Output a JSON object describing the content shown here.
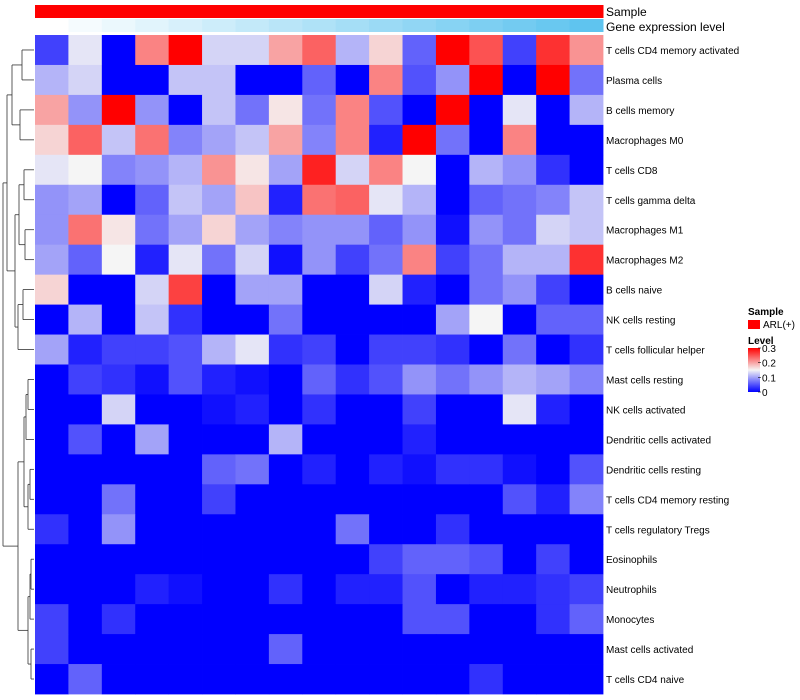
{
  "chart_data": {
    "type": "heatmap",
    "title": "",
    "annotations": {
      "sample_track_label": "Sample",
      "expression_track_label": "Gene expression level",
      "sample_color": "#ff0000",
      "expression_gradient": [
        "#ffffff",
        "#5fc4ef"
      ]
    },
    "row_labels": [
      "T cells CD4 memory activated",
      "Plasma cells",
      "B cells memory",
      "Macrophages M0",
      "T cells CD8",
      "T cells gamma delta",
      "Macrophages M1",
      "Macrophages M2",
      "B cells naive",
      "NK cells resting",
      "T cells follicular helper",
      "Mast cells resting",
      "NK cells activated",
      "Dendritic cells activated",
      "Dendritic cells resting",
      "T cells CD4 memory resting",
      "T cells regulatory  Tregs",
      "Eosinophils",
      "Neutrophils",
      "Monocytes",
      "Mast cells activated",
      "T cells CD4 naive"
    ],
    "columns": 17,
    "values": [
      [
        0.04,
        0.14,
        0.0,
        0.22,
        0.3,
        0.13,
        0.13,
        0.2,
        0.24,
        0.11,
        0.17,
        0.06,
        0.3,
        0.25,
        0.04,
        0.27,
        0.21
      ],
      [
        0.11,
        0.13,
        0.0,
        0.0,
        0.12,
        0.12,
        0.0,
        0.0,
        0.06,
        0.0,
        0.22,
        0.05,
        0.09,
        0.3,
        0.0,
        0.3,
        0.07
      ],
      [
        0.2,
        0.09,
        0.3,
        0.09,
        0.0,
        0.12,
        0.07,
        0.16,
        0.07,
        0.22,
        0.05,
        0.0,
        0.3,
        0.0,
        0.14,
        0.0,
        0.11
      ],
      [
        0.17,
        0.24,
        0.12,
        0.23,
        0.08,
        0.1,
        0.12,
        0.2,
        0.08,
        0.22,
        0.02,
        0.3,
        0.07,
        0.0,
        0.22,
        0.0,
        0.0
      ],
      [
        0.14,
        0.15,
        0.08,
        0.09,
        0.11,
        0.21,
        0.16,
        0.1,
        0.28,
        0.13,
        0.22,
        0.15,
        0.0,
        0.11,
        0.09,
        0.03,
        0.0
      ],
      [
        0.09,
        0.1,
        0.0,
        0.06,
        0.12,
        0.1,
        0.18,
        0.02,
        0.23,
        0.24,
        0.14,
        0.11,
        0.0,
        0.06,
        0.07,
        0.08,
        0.12
      ],
      [
        0.09,
        0.23,
        0.16,
        0.07,
        0.1,
        0.17,
        0.1,
        0.08,
        0.09,
        0.09,
        0.06,
        0.09,
        0.01,
        0.09,
        0.07,
        0.13,
        0.12
      ],
      [
        0.1,
        0.06,
        0.15,
        0.02,
        0.14,
        0.07,
        0.13,
        0.01,
        0.09,
        0.04,
        0.07,
        0.22,
        0.04,
        0.07,
        0.11,
        0.11,
        0.27
      ],
      [
        0.17,
        0.0,
        0.0,
        0.13,
        0.26,
        0.0,
        0.1,
        0.1,
        0.0,
        0.0,
        0.13,
        0.02,
        0.0,
        0.07,
        0.09,
        0.04,
        0.0
      ],
      [
        0.0,
        0.11,
        0.0,
        0.12,
        0.03,
        0.0,
        0.0,
        0.07,
        0.0,
        0.0,
        0.0,
        0.0,
        0.1,
        0.15,
        0.0,
        0.06,
        0.06
      ],
      [
        0.1,
        0.02,
        0.04,
        0.04,
        0.05,
        0.11,
        0.14,
        0.03,
        0.04,
        0.0,
        0.04,
        0.04,
        0.03,
        0.0,
        0.07,
        0.0,
        0.03
      ],
      [
        0.0,
        0.04,
        0.03,
        0.01,
        0.05,
        0.02,
        0.01,
        0.0,
        0.06,
        0.03,
        0.05,
        0.09,
        0.07,
        0.09,
        0.11,
        0.1,
        0.08
      ],
      [
        0.0,
        0.0,
        0.13,
        0.0,
        0.0,
        0.01,
        0.02,
        0.0,
        0.03,
        0.0,
        0.0,
        0.04,
        0.0,
        0.0,
        0.14,
        0.02,
        0.0
      ],
      [
        0.0,
        0.05,
        0.0,
        0.1,
        0.0,
        0.0,
        0.0,
        0.11,
        0.0,
        0.0,
        0.0,
        0.02,
        0.0,
        0.0,
        0.0,
        0.0,
        0.0
      ],
      [
        0.0,
        0.0,
        0.0,
        0.0,
        0.0,
        0.06,
        0.07,
        0.0,
        0.02,
        0.0,
        0.02,
        0.01,
        0.03,
        0.03,
        0.01,
        0.0,
        0.05
      ],
      [
        0.0,
        0.0,
        0.07,
        0.0,
        0.0,
        0.04,
        0.0,
        0.0,
        0.0,
        0.0,
        0.0,
        0.0,
        0.0,
        0.0,
        0.05,
        0.02,
        0.08
      ],
      [
        0.03,
        0.0,
        0.09,
        0.0,
        0.0,
        0.0,
        0.0,
        0.0,
        0.0,
        0.07,
        0.0,
        0.0,
        0.03,
        0.0,
        0.0,
        0.0,
        0.0
      ],
      [
        0.0,
        0.0,
        0.0,
        0.0,
        0.0,
        0.0,
        0.0,
        0.0,
        0.0,
        0.0,
        0.04,
        0.06,
        0.06,
        0.05,
        0.0,
        0.04,
        0.0
      ],
      [
        0.0,
        0.0,
        0.0,
        0.02,
        0.01,
        0.0,
        0.0,
        0.03,
        0.0,
        0.02,
        0.02,
        0.05,
        0.0,
        0.02,
        0.02,
        0.03,
        0.04
      ],
      [
        0.04,
        0.0,
        0.03,
        0.0,
        0.0,
        0.0,
        0.0,
        0.0,
        0.0,
        0.0,
        0.0,
        0.05,
        0.05,
        0.0,
        0.0,
        0.03,
        0.06
      ],
      [
        0.04,
        0.0,
        0.0,
        0.0,
        0.0,
        0.0,
        0.0,
        0.06,
        0.0,
        0.0,
        0.0,
        0.0,
        0.0,
        0.0,
        0.0,
        0.0,
        0.0
      ],
      [
        0.0,
        0.06,
        0.0,
        0.0,
        0.0,
        0.0,
        0.0,
        0.0,
        0.0,
        0.0,
        0.0,
        0.0,
        0.0,
        0.03,
        0.0,
        0.0,
        0.0
      ]
    ],
    "color_scale": {
      "min": 0,
      "mid": 0.15,
      "max": 0.3,
      "low": "#0000ff",
      "midColor": "#f5f5f5",
      "high": "#ff0000"
    },
    "legend": {
      "sample_title": "Sample",
      "sample_entry": "ARL(+)",
      "level_title": "Level",
      "level_ticks": [
        "0.3",
        "0.2",
        "0.1",
        "0"
      ]
    },
    "dendrogram": "rows, left side"
  }
}
